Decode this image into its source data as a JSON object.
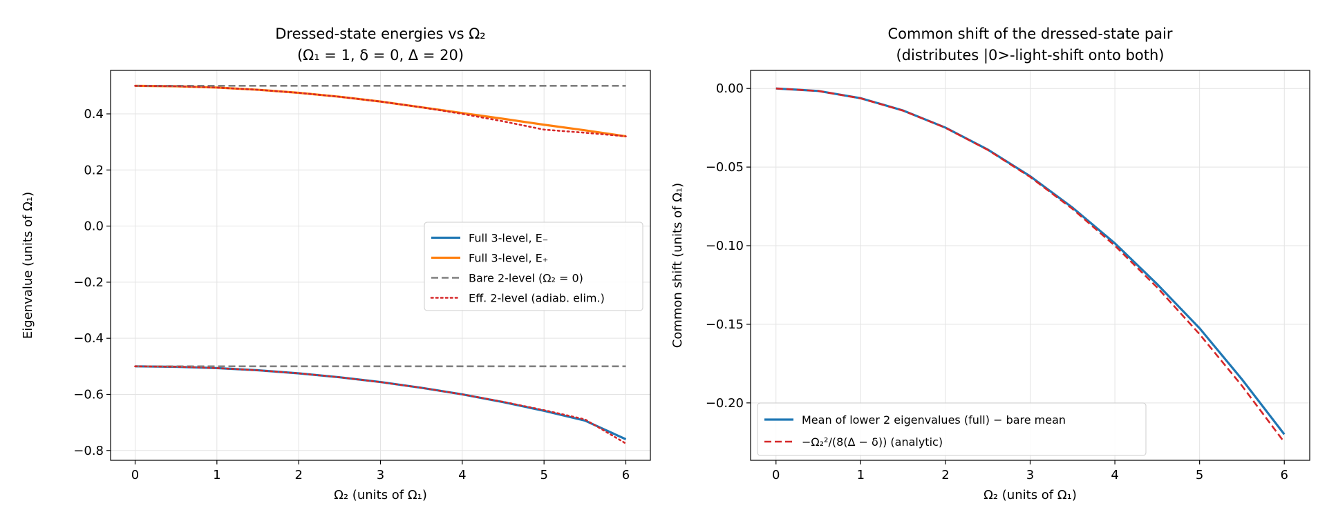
{
  "chart_data": [
    {
      "type": "line",
      "title": "Dressed-state energies vs Ω₂",
      "subtitle": "(Ω₁ = 1,  δ = 0,  Δ = 20)",
      "xlabel": "Ω₂  (units of Ω₁)",
      "ylabel": "Eigenvalue  (units of Ω₁)",
      "xlim": [
        -0.3,
        6.3
      ],
      "ylim": [
        -0.835,
        0.555
      ],
      "xticks": [
        0,
        1,
        2,
        3,
        4,
        5,
        6
      ],
      "xtick_labels": [
        "0",
        "1",
        "2",
        "3",
        "4",
        "5",
        "6"
      ],
      "yticks": [
        -0.8,
        -0.6,
        -0.4,
        -0.2,
        0.0,
        0.2,
        0.4
      ],
      "ytick_labels": [
        "−0.8",
        "−0.6",
        "−0.4",
        "−0.2",
        "0.0",
        "0.2",
        "0.4"
      ],
      "grid": true,
      "legend_position": "center-right",
      "x": [
        0,
        0.5,
        1,
        1.5,
        2,
        2.5,
        3,
        3.5,
        4,
        4.5,
        5,
        5.5,
        6
      ],
      "series": [
        {
          "name": "Full 3-level, E₋",
          "color": "#1f77b4",
          "style": "solid",
          "values": [
            -0.5,
            -0.5016,
            -0.5062,
            -0.514,
            -0.525,
            -0.539,
            -0.556,
            -0.5765,
            -0.6,
            -0.6275,
            -0.6587,
            -0.6935,
            -0.76
          ]
        },
        {
          "name": "Full 3-level, E₊",
          "color": "#ff7f0e",
          "style": "solid",
          "values": [
            0.5,
            0.4984,
            0.4938,
            0.486,
            0.475,
            0.461,
            0.444,
            0.4235,
            0.403,
            0.3825,
            0.3613,
            0.3415,
            0.32
          ]
        },
        {
          "name": "Bare 2-level (Ω₂ = 0)",
          "color": "#7f7f7f",
          "style": "dashed",
          "values": [
            -0.5,
            -0.5,
            -0.5,
            -0.5,
            -0.5,
            -0.5,
            -0.5,
            -0.5,
            -0.5,
            -0.5,
            -0.5,
            -0.5,
            -0.5
          ],
          "values_upper": [
            0.5,
            0.5,
            0.5,
            0.5,
            0.5,
            0.5,
            0.5,
            0.5,
            0.5,
            0.5,
            0.5,
            0.5,
            0.5
          ]
        },
        {
          "name": "Eff. 2-level (adiab. elim.)",
          "color": "#d62728",
          "style": "dotted",
          "values": [
            -0.5,
            -0.5016,
            -0.5063,
            -0.5141,
            -0.525,
            -0.5391,
            -0.5563,
            -0.5766,
            -0.6,
            -0.6266,
            -0.6563,
            -0.6891,
            -0.775
          ],
          "values_upper": [
            0.5,
            0.4984,
            0.4938,
            0.4859,
            0.475,
            0.4609,
            0.4438,
            0.4234,
            0.4,
            0.3734,
            0.3438,
            0.3328,
            0.32
          ]
        }
      ]
    },
    {
      "type": "line",
      "title": "Common shift of the dressed-state pair",
      "subtitle": "(distributes |0>-light-shift onto both)",
      "xlabel": "Ω₂  (units of Ω₁)",
      "ylabel": "Common shift  (units of Ω₁)",
      "xlim": [
        -0.3,
        6.3
      ],
      "ylim": [
        -0.2365,
        0.0115
      ],
      "xticks": [
        0,
        1,
        2,
        3,
        4,
        5,
        6
      ],
      "xtick_labels": [
        "0",
        "1",
        "2",
        "3",
        "4",
        "5",
        "6"
      ],
      "yticks": [
        0.0,
        -0.05,
        -0.1,
        -0.15,
        -0.2
      ],
      "ytick_labels": [
        "0.00",
        "−0.05",
        "−0.10",
        "−0.15",
        "−0.20"
      ],
      "grid": true,
      "legend_position": "lower-left",
      "x": [
        0,
        0.5,
        1,
        1.5,
        2,
        2.5,
        3,
        3.5,
        4,
        4.5,
        5,
        5.5,
        6
      ],
      "series": [
        {
          "name": "Mean of lower 2 eigenvalues (full)  −  bare mean",
          "color": "#1f77b4",
          "style": "solid",
          "values": [
            0.0,
            -0.0016,
            -0.0062,
            -0.014,
            -0.0249,
            -0.0389,
            -0.0558,
            -0.0758,
            -0.0985,
            -0.1245,
            -0.1525,
            -0.185,
            -0.22
          ]
        },
        {
          "name": "−Ω₂²/(8(Δ − δ)) (analytic)",
          "color": "#d62728",
          "style": "dashed",
          "values": [
            0.0,
            -0.0016,
            -0.0063,
            -0.0141,
            -0.025,
            -0.0391,
            -0.0563,
            -0.0766,
            -0.1,
            -0.1266,
            -0.1563,
            -0.1891,
            -0.225
          ]
        }
      ]
    }
  ]
}
